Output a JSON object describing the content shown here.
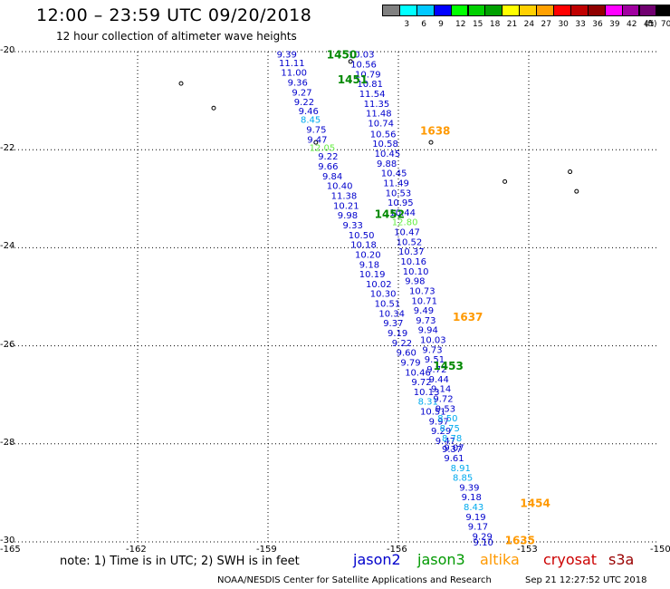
{
  "header": {
    "title": "12:00 – 23:59 UTC 09/20/2018",
    "subtitle": "12 hour collection of altimeter wave heights"
  },
  "colorbar": {
    "unit": "(ft)",
    "bins": [
      {
        "label": "",
        "color": "#808080"
      },
      {
        "label": "3",
        "color": "#00ffff"
      },
      {
        "label": "6",
        "color": "#00c8ff"
      },
      {
        "label": "9",
        "color": "#0000ff"
      },
      {
        "label": "12",
        "color": "#00ff00"
      },
      {
        "label": "15",
        "color": "#00d000"
      },
      {
        "label": "18",
        "color": "#00a000"
      },
      {
        "label": "21",
        "color": "#ffff00"
      },
      {
        "label": "24",
        "color": "#ffd000"
      },
      {
        "label": "27",
        "color": "#ffa000"
      },
      {
        "label": "30",
        "color": "#ff0000"
      },
      {
        "label": "33",
        "color": "#c00000"
      },
      {
        "label": "36",
        "color": "#900000"
      },
      {
        "label": "39",
        "color": "#ff00ff"
      },
      {
        "label": "42",
        "color": "#a000a0"
      },
      {
        "label": "45",
        "color": "#700070"
      },
      {
        "label": "70",
        "color": "#000000"
      }
    ]
  },
  "axes": {
    "lat_labels": [
      "-20",
      "-22",
      "-24",
      "-26",
      "-28",
      "-30"
    ],
    "lon_labels": [
      "-165",
      "-162",
      "-159",
      "-156",
      "-153",
      "-150"
    ]
  },
  "map": {
    "lat_range": [
      -30,
      -20
    ],
    "lon_range": [
      -165,
      -150
    ],
    "grid": "dotted",
    "tracks": [
      {
        "readings": [
          {
            "lat": -20.05,
            "lon": -158.8,
            "swh": "9.39",
            "color": "#0000cc"
          },
          {
            "lat": -20.22,
            "lon": -158.75,
            "swh": "11.11",
            "color": "#0000cc"
          },
          {
            "lat": -20.42,
            "lon": -158.7,
            "swh": "11.00",
            "color": "#0000cc"
          },
          {
            "lat": -20.62,
            "lon": -158.55,
            "swh": "9.36",
            "color": "#0000cc"
          },
          {
            "lat": -20.82,
            "lon": -158.45,
            "swh": "9.27",
            "color": "#0000cc"
          },
          {
            "lat": -21.02,
            "lon": -158.4,
            "swh": "9.22",
            "color": "#0000cc"
          },
          {
            "lat": -21.2,
            "lon": -158.3,
            "swh": "9.46",
            "color": "#0000cc"
          },
          {
            "lat": -21.38,
            "lon": -158.25,
            "swh": "8.45",
            "color": "#00aaee"
          },
          {
            "lat": -21.58,
            "lon": -158.12,
            "swh": "9.75",
            "color": "#0000cc"
          },
          {
            "lat": -21.78,
            "lon": -158.1,
            "swh": "9.47",
            "color": "#0000cc"
          },
          {
            "lat": -21.95,
            "lon": -158.05,
            "swh": "12.05",
            "color": "#66ee44"
          },
          {
            "lat": -22.13,
            "lon": -157.85,
            "swh": "9.22",
            "color": "#0000cc"
          },
          {
            "lat": -22.33,
            "lon": -157.85,
            "swh": "9.66",
            "color": "#0000cc"
          },
          {
            "lat": -22.53,
            "lon": -157.75,
            "swh": "9.84",
            "color": "#0000cc"
          },
          {
            "lat": -22.73,
            "lon": -157.65,
            "swh": "10.40",
            "color": "#0000cc"
          },
          {
            "lat": -22.93,
            "lon": -157.55,
            "swh": "11.38",
            "color": "#0000cc"
          },
          {
            "lat": -23.13,
            "lon": -157.5,
            "swh": "10.21",
            "color": "#0000cc"
          },
          {
            "lat": -23.33,
            "lon": -157.4,
            "swh": "9.98",
            "color": "#0000cc"
          },
          {
            "lat": -23.53,
            "lon": -157.28,
            "swh": "9.33",
            "color": "#0000cc"
          },
          {
            "lat": -23.73,
            "lon": -157.15,
            "swh": "10.50",
            "color": "#0000cc"
          },
          {
            "lat": -23.93,
            "lon": -157.1,
            "swh": "10.18",
            "color": "#0000cc"
          },
          {
            "lat": -24.13,
            "lon": -157.0,
            "swh": "10.20",
            "color": "#0000cc"
          },
          {
            "lat": -24.33,
            "lon": -156.9,
            "swh": "9.18",
            "color": "#0000cc"
          },
          {
            "lat": -24.53,
            "lon": -156.9,
            "swh": "10.19",
            "color": "#0000cc"
          },
          {
            "lat": -24.73,
            "lon": -156.75,
            "swh": "10.02",
            "color": "#0000cc"
          },
          {
            "lat": -24.93,
            "lon": -156.65,
            "swh": "10.30",
            "color": "#0000cc"
          },
          {
            "lat": -25.13,
            "lon": -156.55,
            "swh": "10.51",
            "color": "#0000cc"
          },
          {
            "lat": -25.33,
            "lon": -156.45,
            "swh": "10.34",
            "color": "#0000cc"
          },
          {
            "lat": -25.53,
            "lon": -156.35,
            "swh": "9.37",
            "color": "#0000cc"
          },
          {
            "lat": -25.73,
            "lon": -156.25,
            "swh": "9.19",
            "color": "#0000cc"
          },
          {
            "lat": -25.93,
            "lon": -156.15,
            "swh": "9.22",
            "color": "#0000cc"
          },
          {
            "lat": -26.13,
            "lon": -156.05,
            "swh": "9.60",
            "color": "#0000cc"
          },
          {
            "lat": -26.33,
            "lon": -155.95,
            "swh": "9.79",
            "color": "#0000cc"
          },
          {
            "lat": -26.53,
            "lon": -155.85,
            "swh": "10.46",
            "color": "#0000cc"
          },
          {
            "lat": -26.73,
            "lon": -155.7,
            "swh": "9.72",
            "color": "#0000cc"
          },
          {
            "lat": -26.93,
            "lon": -155.65,
            "swh": "10.13",
            "color": "#0000cc"
          },
          {
            "lat": -27.13,
            "lon": -155.55,
            "swh": "8.31",
            "color": "#00aaee"
          },
          {
            "lat": -27.33,
            "lon": -155.5,
            "swh": "10.51",
            "color": "#0000cc"
          },
          {
            "lat": -27.53,
            "lon": -155.3,
            "swh": "9.97",
            "color": "#0000cc"
          },
          {
            "lat": -27.73,
            "lon": -155.25,
            "swh": "9.29",
            "color": "#0000cc"
          },
          {
            "lat": -27.93,
            "lon": -155.15,
            "swh": "9.47",
            "color": "#0000cc"
          },
          {
            "lat": -28.1,
            "lon": -155.0,
            "swh": "9.37",
            "color": "#0000cc"
          },
          {
            "lat": -28.28,
            "lon": -154.95,
            "swh": "9.61",
            "color": "#0000cc"
          },
          {
            "lat": -28.48,
            "lon": -154.8,
            "swh": "8.91",
            "color": "#00aaee"
          },
          {
            "lat": -28.68,
            "lon": -154.75,
            "swh": "8.85",
            "color": "#00aaee"
          },
          {
            "lat": -28.88,
            "lon": -154.6,
            "swh": "9.39",
            "color": "#0000cc"
          },
          {
            "lat": -29.08,
            "lon": -154.55,
            "swh": "9.18",
            "color": "#0000cc"
          },
          {
            "lat": -29.28,
            "lon": -154.5,
            "swh": "8.43",
            "color": "#00aaee"
          },
          {
            "lat": -29.48,
            "lon": -154.45,
            "swh": "9.19",
            "color": "#0000cc"
          },
          {
            "lat": -29.68,
            "lon": -154.4,
            "swh": "9.17",
            "color": "#0000cc"
          },
          {
            "lat": -29.88,
            "lon": -154.3,
            "swh": "9.29",
            "color": "#0000cc"
          },
          {
            "lat": -30.0,
            "lon": -154.28,
            "swh": "9.10",
            "color": "#0000cc"
          }
        ]
      },
      {
        "readings": [
          {
            "lat": -20.05,
            "lon": -157.15,
            "swh": "10.03",
            "color": "#0000cc"
          },
          {
            "lat": -20.25,
            "lon": -157.1,
            "swh": "10.56",
            "color": "#0000cc"
          },
          {
            "lat": -20.45,
            "lon": -157.0,
            "swh": "10.79",
            "color": "#0000cc"
          },
          {
            "lat": -20.65,
            "lon": -156.95,
            "swh": "10.81",
            "color": "#0000cc"
          },
          {
            "lat": -20.85,
            "lon": -156.9,
            "swh": "11.54",
            "color": "#0000cc"
          },
          {
            "lat": -21.05,
            "lon": -156.8,
            "swh": "11.35",
            "color": "#0000cc"
          },
          {
            "lat": -21.25,
            "lon": -156.75,
            "swh": "11.48",
            "color": "#0000cc"
          },
          {
            "lat": -21.45,
            "lon": -156.7,
            "swh": "10.74",
            "color": "#0000cc"
          },
          {
            "lat": -21.67,
            "lon": -156.65,
            "swh": "10.56",
            "color": "#0000cc"
          },
          {
            "lat": -21.87,
            "lon": -156.6,
            "swh": "10.58",
            "color": "#0000cc"
          },
          {
            "lat": -22.07,
            "lon": -156.55,
            "swh": "10.45",
            "color": "#0000cc"
          },
          {
            "lat": -22.27,
            "lon": -156.5,
            "swh": "9.88",
            "color": "#0000cc"
          },
          {
            "lat": -22.47,
            "lon": -156.4,
            "swh": "10.45",
            "color": "#0000cc"
          },
          {
            "lat": -22.67,
            "lon": -156.35,
            "swh": "11.49",
            "color": "#0000cc"
          },
          {
            "lat": -22.87,
            "lon": -156.3,
            "swh": "10.53",
            "color": "#0000cc"
          },
          {
            "lat": -23.07,
            "lon": -156.25,
            "swh": "10.95",
            "color": "#0000cc"
          },
          {
            "lat": -23.27,
            "lon": -156.2,
            "swh": "10.44",
            "color": "#0000cc"
          },
          {
            "lat": -23.47,
            "lon": -156.15,
            "swh": "12.80",
            "color": "#66ee44"
          },
          {
            "lat": -23.67,
            "lon": -156.1,
            "swh": "10.47",
            "color": "#0000cc"
          },
          {
            "lat": -23.87,
            "lon": -156.05,
            "swh": "10.52",
            "color": "#0000cc"
          },
          {
            "lat": -24.07,
            "lon": -156.0,
            "swh": "10.37",
            "color": "#0000cc"
          },
          {
            "lat": -24.27,
            "lon": -155.95,
            "swh": "10.16",
            "color": "#0000cc"
          },
          {
            "lat": -24.47,
            "lon": -155.9,
            "swh": "10.10",
            "color": "#0000cc"
          },
          {
            "lat": -24.67,
            "lon": -155.85,
            "swh": "9.98",
            "color": "#0000cc"
          },
          {
            "lat": -24.87,
            "lon": -155.75,
            "swh": "10.73",
            "color": "#0000cc"
          },
          {
            "lat": -25.07,
            "lon": -155.7,
            "swh": "10.71",
            "color": "#0000cc"
          },
          {
            "lat": -25.27,
            "lon": -155.65,
            "swh": "9.49",
            "color": "#0000cc"
          },
          {
            "lat": -25.47,
            "lon": -155.6,
            "swh": "9.73",
            "color": "#0000cc"
          },
          {
            "lat": -25.67,
            "lon": -155.55,
            "swh": "9.94",
            "color": "#0000cc"
          },
          {
            "lat": -25.87,
            "lon": -155.5,
            "swh": "10.03",
            "color": "#0000cc"
          },
          {
            "lat": -26.07,
            "lon": -155.45,
            "swh": "9.73",
            "color": "#0000cc"
          },
          {
            "lat": -26.27,
            "lon": -155.4,
            "swh": "9.51",
            "color": "#0000cc"
          },
          {
            "lat": -26.47,
            "lon": -155.35,
            "swh": "9.72",
            "color": "#0000cc"
          },
          {
            "lat": -26.67,
            "lon": -155.3,
            "swh": "9.44",
            "color": "#0000cc"
          },
          {
            "lat": -26.87,
            "lon": -155.25,
            "swh": "9.14",
            "color": "#0000cc"
          },
          {
            "lat": -27.07,
            "lon": -155.2,
            "swh": "9.72",
            "color": "#0000cc"
          },
          {
            "lat": -27.27,
            "lon": -155.15,
            "swh": "9.53",
            "color": "#0000cc"
          },
          {
            "lat": -27.47,
            "lon": -155.1,
            "swh": "8.50",
            "color": "#00aaee"
          },
          {
            "lat": -27.67,
            "lon": -155.05,
            "swh": "8.75",
            "color": "#00aaee"
          },
          {
            "lat": -27.87,
            "lon": -155.0,
            "swh": "8.78",
            "color": "#00aaee"
          },
          {
            "lat": -28.07,
            "lon": -154.95,
            "swh": "9.07",
            "color": "#0000cc"
          }
        ]
      }
    ],
    "time_labels": [
      {
        "text": "1450",
        "lat": -20.05,
        "lon": -157.65,
        "color": "#008800"
      },
      {
        "text": "1451",
        "lat": -20.55,
        "lon": -157.4,
        "color": "#008800"
      },
      {
        "text": "1452",
        "lat": -23.3,
        "lon": -156.55,
        "color": "#008800"
      },
      {
        "text": "1453",
        "lat": -26.4,
        "lon": -155.2,
        "color": "#008800"
      },
      {
        "text": "1454",
        "lat": -29.2,
        "lon": -153.2,
        "color": "#ff9900"
      },
      {
        "text": "1635",
        "lat": -29.95,
        "lon": -153.55,
        "color": "#ff9900"
      },
      {
        "text": "1637",
        "lat": -25.4,
        "lon": -154.75,
        "color": "#ff9900"
      },
      {
        "text": "1638",
        "lat": -21.6,
        "lon": -155.5,
        "color": "#ff9900"
      }
    ],
    "islands": [
      {
        "lat": -20.65,
        "lon": -161.0
      },
      {
        "lat": -21.15,
        "lon": -160.25
      },
      {
        "lat": -20.2,
        "lon": -157.1
      },
      {
        "lat": -21.85,
        "lon": -157.9
      },
      {
        "lat": -21.85,
        "lon": -155.25
      },
      {
        "lat": -22.65,
        "lon": -153.55
      },
      {
        "lat": -22.45,
        "lon": -152.05
      },
      {
        "lat": -22.85,
        "lon": -151.9
      }
    ]
  },
  "footer": {
    "note": "note:  1) Time is in UTC;  2) SWH is in feet",
    "legend": [
      {
        "label": "jason2",
        "color": "#0000cc"
      },
      {
        "label": "jason3",
        "color": "#009900"
      },
      {
        "label": "altika",
        "color": "#ff9900"
      },
      {
        "label": "cryosat",
        "color": "#cc0000"
      },
      {
        "label": "s3a",
        "color": "#990000"
      }
    ],
    "credit": "NOAA/NESDIS Center for Satellite Applications and Research",
    "timestamp": "Sep 21 12:27:52 UTC 2018"
  }
}
